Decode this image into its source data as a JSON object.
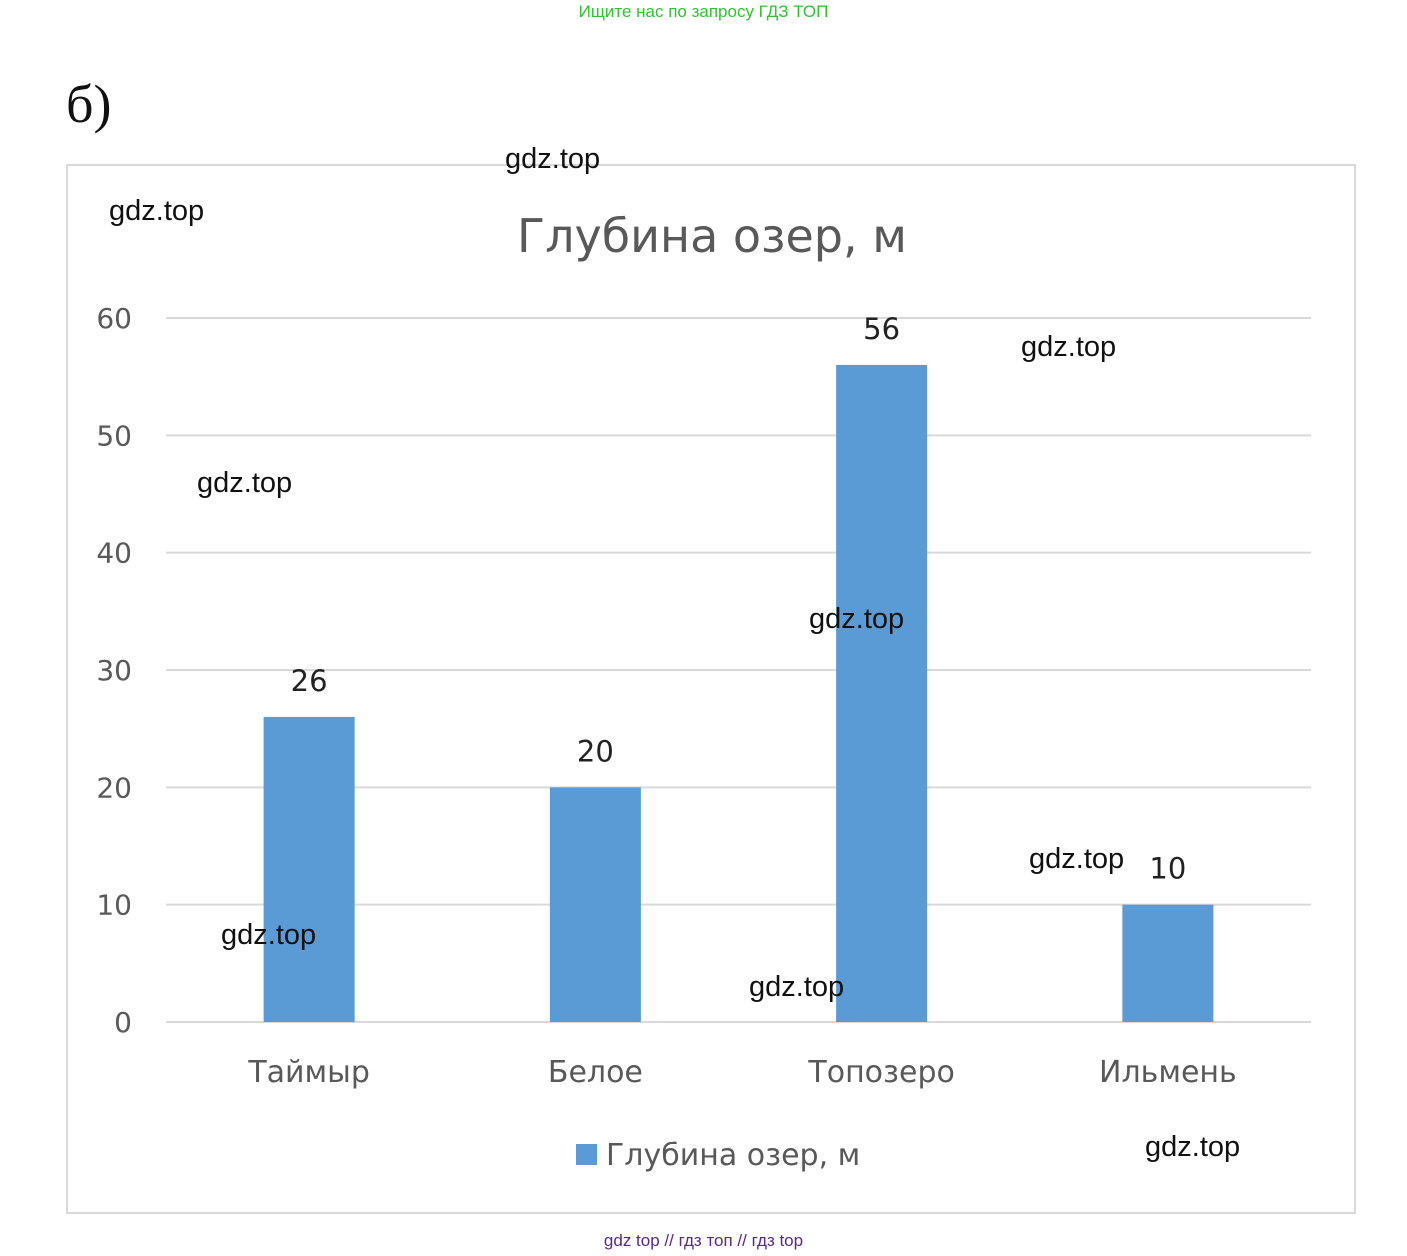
{
  "header": {
    "banner": "Ищите нас по запросу ГДЗ ТОП",
    "part_label": "б)"
  },
  "colors": {
    "bar": "#5b9bd5",
    "grid": "#d9d9d9",
    "title": "#595959",
    "axis_text": "#595959",
    "banner": "#2fc42f",
    "footer": "#5a2a82"
  },
  "chart_data": {
    "type": "bar",
    "title": "Глубина озер, м",
    "categories": [
      "Таймыр",
      "Белое",
      "Топозеро",
      "Ильмень"
    ],
    "series": [
      {
        "name": "Глубина озер, м",
        "values": [
          26,
          20,
          56,
          10
        ]
      }
    ],
    "data_labels": [
      "26",
      "20",
      "56",
      "10"
    ],
    "ylim": [
      0,
      60
    ],
    "yticks": [
      0,
      10,
      20,
      30,
      40,
      50,
      60
    ],
    "grid": true,
    "legend": "bottom"
  },
  "watermarks": [
    "gdz.top",
    "gdz.top",
    "gdz.top",
    "gdz.top",
    "gdz.top",
    "gdz.top",
    "gdz.top",
    "gdz.top",
    "gdz.top"
  ],
  "footer": {
    "text": "gdz top  //  гдз топ  //  гдз top"
  }
}
